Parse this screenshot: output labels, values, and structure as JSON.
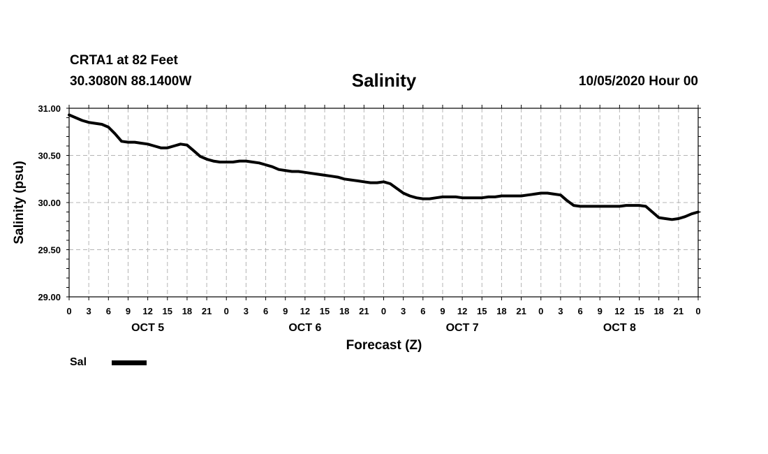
{
  "header": {
    "station": "CRTA1 at 82 Feet",
    "coords": "30.3080N 88.1400W",
    "stamp": "10/05/2020 Hour 00"
  },
  "colors": {
    "line": "#000000",
    "grid": "#b4b4b4",
    "frame": "#000000"
  },
  "chart_data": {
    "type": "line",
    "title": "Salinity",
    "xlabel": "Forecast (Z)",
    "ylabel": "Salinity (psu)",
    "xlim": [
      0,
      96
    ],
    "ylim": [
      29.0,
      31.0
    ],
    "yticks": [
      "29.00",
      "29.50",
      "30.00",
      "30.50",
      "31.00"
    ],
    "ytick_values": [
      29.0,
      29.5,
      30.0,
      30.5,
      31.0
    ],
    "xtick_labels": [
      "0",
      "3",
      "6",
      "9",
      "12",
      "15",
      "18",
      "21",
      "0",
      "3",
      "6",
      "9",
      "12",
      "15",
      "18",
      "21",
      "0",
      "3",
      "6",
      "9",
      "12",
      "15",
      "18",
      "21",
      "0",
      "3",
      "6",
      "9",
      "12",
      "15",
      "18",
      "21",
      "0"
    ],
    "day_labels": [
      "OCT 5",
      "OCT 6",
      "OCT 7",
      "OCT 8"
    ],
    "grid": true,
    "legend": "bottom-left",
    "series": [
      {
        "name": "Sal",
        "x": [
          0,
          1,
          2,
          3,
          4,
          5,
          6,
          7,
          8,
          9,
          10,
          11,
          12,
          13,
          14,
          15,
          16,
          17,
          18,
          19,
          20,
          21,
          22,
          23,
          24,
          25,
          26,
          27,
          28,
          29,
          30,
          31,
          32,
          33,
          34,
          35,
          36,
          37,
          38,
          39,
          40,
          41,
          42,
          43,
          44,
          45,
          46,
          47,
          48,
          49,
          50,
          51,
          52,
          53,
          54,
          55,
          56,
          57,
          58,
          59,
          60,
          61,
          62,
          63,
          64,
          65,
          66,
          67,
          68,
          69,
          70,
          71,
          72,
          73,
          74,
          75,
          76,
          77,
          78,
          79,
          80,
          81,
          82,
          83,
          84,
          85,
          86,
          87,
          88,
          89,
          90,
          91,
          92,
          93,
          94,
          95,
          96
        ],
        "values": [
          30.93,
          30.9,
          30.87,
          30.85,
          30.84,
          30.83,
          30.8,
          30.73,
          30.65,
          30.64,
          30.64,
          30.63,
          30.62,
          30.6,
          30.58,
          30.58,
          30.6,
          30.62,
          30.61,
          30.55,
          30.49,
          30.46,
          30.44,
          30.43,
          30.43,
          30.43,
          30.44,
          30.44,
          30.43,
          30.42,
          30.4,
          30.38,
          30.35,
          30.34,
          30.33,
          30.33,
          30.32,
          30.31,
          30.3,
          30.29,
          30.28,
          30.27,
          30.25,
          30.24,
          30.23,
          30.22,
          30.21,
          30.21,
          30.22,
          30.2,
          30.15,
          30.1,
          30.07,
          30.05,
          30.04,
          30.04,
          30.05,
          30.06,
          30.06,
          30.06,
          30.05,
          30.05,
          30.05,
          30.05,
          30.06,
          30.06,
          30.07,
          30.07,
          30.07,
          30.07,
          30.08,
          30.09,
          30.1,
          30.1,
          30.09,
          30.08,
          30.02,
          29.97,
          29.96,
          29.96,
          29.96,
          29.96,
          29.96,
          29.96,
          29.96,
          29.97,
          29.97,
          29.97,
          29.96,
          29.9,
          29.84,
          29.83,
          29.82,
          29.83,
          29.85,
          29.88,
          29.9
        ]
      }
    ]
  }
}
